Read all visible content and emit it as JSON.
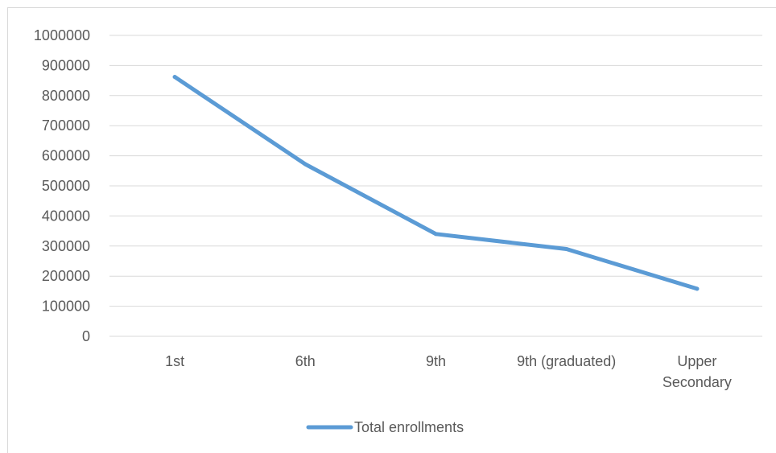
{
  "chart_data": {
    "type": "line",
    "title": "",
    "xlabel": "",
    "ylabel": "",
    "categories": [
      "1st",
      "6th",
      "9th",
      "9th (graduated)",
      "Upper Secondary"
    ],
    "category_lines": [
      [
        "1st"
      ],
      [
        "6th"
      ],
      [
        "9th"
      ],
      [
        "9th (graduated)"
      ],
      [
        "Upper",
        "Secondary"
      ]
    ],
    "series": [
      {
        "name": "Total enrollments",
        "values": [
          862000,
          572000,
          340000,
          290000,
          158000
        ],
        "color": "#5b9bd5"
      }
    ],
    "ylim": [
      0,
      1000000
    ],
    "yticks": [
      "0",
      "100000",
      "200000",
      "300000",
      "400000",
      "500000",
      "600000",
      "700000",
      "800000",
      "900000",
      "1000000"
    ],
    "grid": true,
    "legend_position": "bottom"
  }
}
